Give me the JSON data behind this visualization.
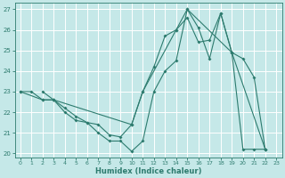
{
  "xlabel": "Humidex (Indice chaleur)",
  "xlim": [
    -0.5,
    23.5
  ],
  "ylim": [
    19.8,
    27.3
  ],
  "xticks": [
    0,
    1,
    2,
    3,
    4,
    5,
    6,
    7,
    8,
    9,
    10,
    11,
    12,
    13,
    14,
    15,
    16,
    17,
    18,
    19,
    20,
    21,
    22,
    23
  ],
  "yticks": [
    20,
    21,
    22,
    23,
    24,
    25,
    26,
    27
  ],
  "bg_color": "#c5e8e8",
  "grid_color": "#ffffff",
  "line_color": "#2d7b6e",
  "line1_x": [
    0,
    1,
    2,
    3,
    4,
    5,
    6,
    7,
    8,
    9,
    10,
    11,
    12,
    13,
    14,
    15,
    16,
    17,
    18,
    19,
    20,
    21,
    22
  ],
  "line1_y": [
    23.0,
    23.0,
    22.6,
    22.6,
    22.0,
    21.6,
    21.5,
    21.0,
    20.6,
    20.6,
    20.1,
    20.6,
    23.0,
    24.0,
    24.5,
    27.0,
    26.1,
    24.6,
    26.8,
    24.9,
    24.6,
    23.7,
    20.2
  ],
  "line2_x": [
    2,
    3,
    4,
    5,
    6,
    7,
    8,
    9,
    10,
    11,
    12,
    13,
    14,
    15,
    16,
    17,
    18,
    19,
    20,
    21,
    22
  ],
  "line2_y": [
    23.0,
    22.6,
    22.2,
    21.8,
    21.5,
    21.4,
    20.9,
    20.8,
    21.4,
    23.0,
    24.2,
    25.7,
    26.0,
    26.6,
    25.4,
    25.5,
    26.8,
    24.9,
    20.2,
    20.2,
    20.2
  ],
  "line3_x": [
    0,
    2,
    3,
    10,
    11,
    14,
    15,
    19,
    22
  ],
  "line3_y": [
    23.0,
    22.6,
    22.6,
    21.4,
    23.0,
    26.0,
    27.0,
    24.9,
    20.2
  ]
}
